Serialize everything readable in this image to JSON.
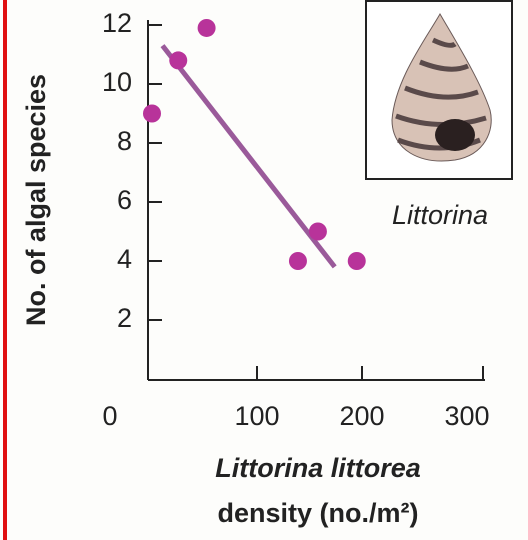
{
  "chart_data": {
    "type": "scatter",
    "ylabel": "No. of algal species",
    "xlabel": [
      "Littorina littorea",
      "density (no./m²)"
    ],
    "image_caption": "Littorina",
    "x": [
      0,
      25,
      52,
      139,
      158,
      195
    ],
    "values": [
      9,
      10.8,
      11.9,
      4,
      5,
      4
    ],
    "color": "#b8339a",
    "trend": {
      "x": [
        10,
        174
      ],
      "values": [
        11.3,
        3.8
      ],
      "color": "#9a5a9a"
    },
    "xlim": [
      0,
      300
    ],
    "xticks": [
      0,
      100,
      200,
      300
    ],
    "ylim": [
      0,
      12
    ],
    "yticks": [
      2,
      4,
      6,
      8,
      10,
      12
    ]
  }
}
